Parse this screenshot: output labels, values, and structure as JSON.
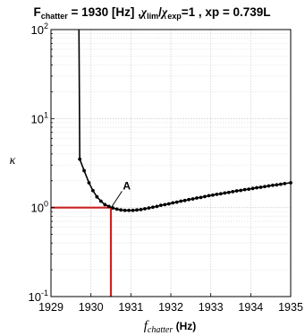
{
  "chart_data": {
    "type": "line",
    "title": {
      "f_main": "F",
      "f_sub": "chatter",
      "eq_val": " = 1930 [Hz] ,",
      "chi1": "χ",
      "chi1_sub": "lim",
      "slash": "/",
      "chi2": "χ",
      "chi2_sub": "exp",
      "ratio_val": "=1  , xp = 0.739L"
    },
    "xlabel": {
      "main": "f",
      "sub": "chatter",
      "unit": " (Hz)"
    },
    "ylabel": "κ",
    "xlim": [
      1929,
      1935
    ],
    "ylim": [
      0.1,
      100
    ],
    "yscale": "log",
    "grid": true,
    "x_ticks": [
      "1929",
      "1930",
      "1931",
      "1932",
      "1933",
      "1934",
      "1935"
    ],
    "y_ticks": [
      {
        "base": "10",
        "exp": "-1",
        "value": 0.1
      },
      {
        "base": "10",
        "exp": "0",
        "value": 1
      },
      {
        "base": "10",
        "exp": "1",
        "value": 10
      },
      {
        "base": "10",
        "exp": "2",
        "value": 100
      }
    ],
    "series": [
      {
        "color": "#000000",
        "marker": "dot",
        "x": [
          1929.72,
          1929.83,
          1929.95,
          1930.05,
          1930.15,
          1930.25,
          1930.35,
          1930.45,
          1930.55,
          1930.65,
          1930.75,
          1930.85,
          1930.95,
          1931.05,
          1931.15,
          1931.25,
          1931.35,
          1931.45,
          1931.55,
          1931.65,
          1931.75,
          1931.85,
          1931.95,
          1932.05,
          1932.15,
          1932.25,
          1932.35,
          1932.45,
          1932.55,
          1932.65,
          1932.75,
          1932.85,
          1932.95,
          1933.05,
          1933.15,
          1933.25,
          1933.35,
          1933.45,
          1933.55,
          1933.65,
          1933.75,
          1933.85,
          1933.95,
          1934.05,
          1934.15,
          1934.25,
          1934.35,
          1934.45,
          1934.55,
          1934.65,
          1934.75,
          1934.85,
          1935.0
        ],
        "y": [
          3.5,
          2.6,
          1.9,
          1.55,
          1.32,
          1.18,
          1.08,
          1.03,
          0.99,
          0.96,
          0.94,
          0.93,
          0.93,
          0.93,
          0.94,
          0.95,
          0.97,
          0.99,
          1.01,
          1.03,
          1.06,
          1.08,
          1.1,
          1.13,
          1.15,
          1.18,
          1.2,
          1.23,
          1.25,
          1.28,
          1.3,
          1.33,
          1.36,
          1.38,
          1.41,
          1.43,
          1.46,
          1.48,
          1.51,
          1.54,
          1.56,
          1.59,
          1.61,
          1.64,
          1.67,
          1.69,
          1.72,
          1.75,
          1.78,
          1.8,
          1.83,
          1.86,
          1.9
        ],
        "steep_branch": {
          "x": [
            1929.7,
            1929.71,
            1929.72
          ],
          "y": [
            100,
            20,
            3.5
          ]
        }
      }
    ],
    "reference": {
      "x": 1930.5,
      "y": 1.0,
      "color": "#cc2222"
    },
    "annotation": {
      "text": "A",
      "x": 1930.5,
      "y": 1.0,
      "text_x": 1930.8,
      "text_y": 1.6
    }
  }
}
